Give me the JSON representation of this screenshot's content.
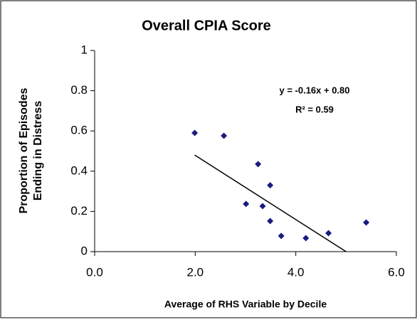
{
  "chart_data": {
    "type": "scatter",
    "title": "Overall CPIA Score",
    "xlabel": "Average of RHS Variable by Decile",
    "ylabel": [
      "Proportion of Episodes",
      "Ending in Distress"
    ],
    "x": [
      1.99,
      2.57,
      3.25,
      3.49,
      3.01,
      3.34,
      3.49,
      3.71,
      4.2,
      4.65,
      5.4
    ],
    "values": [
      0.59,
      0.576,
      0.435,
      0.33,
      0.237,
      0.226,
      0.152,
      0.078,
      0.067,
      0.092,
      0.145
    ],
    "color": "#1a1a80",
    "xlim": [
      0,
      6
    ],
    "xticks": [
      {
        "value": 0,
        "label": "0.0"
      },
      {
        "value": 2,
        "label": "2.0"
      },
      {
        "value": 4,
        "label": "4.0"
      },
      {
        "value": 6,
        "label": "6.0"
      }
    ],
    "ylim": [
      0,
      1
    ],
    "yticks": [
      0,
      0.2,
      0.4,
      0.6,
      0.8,
      1
    ],
    "trendline": {
      "x": [
        1.99,
        5.0
      ],
      "y": [
        0.48,
        0
      ]
    },
    "annotations": [
      "y = -0.16x + 0.80",
      "R² = 0.59"
    ]
  }
}
